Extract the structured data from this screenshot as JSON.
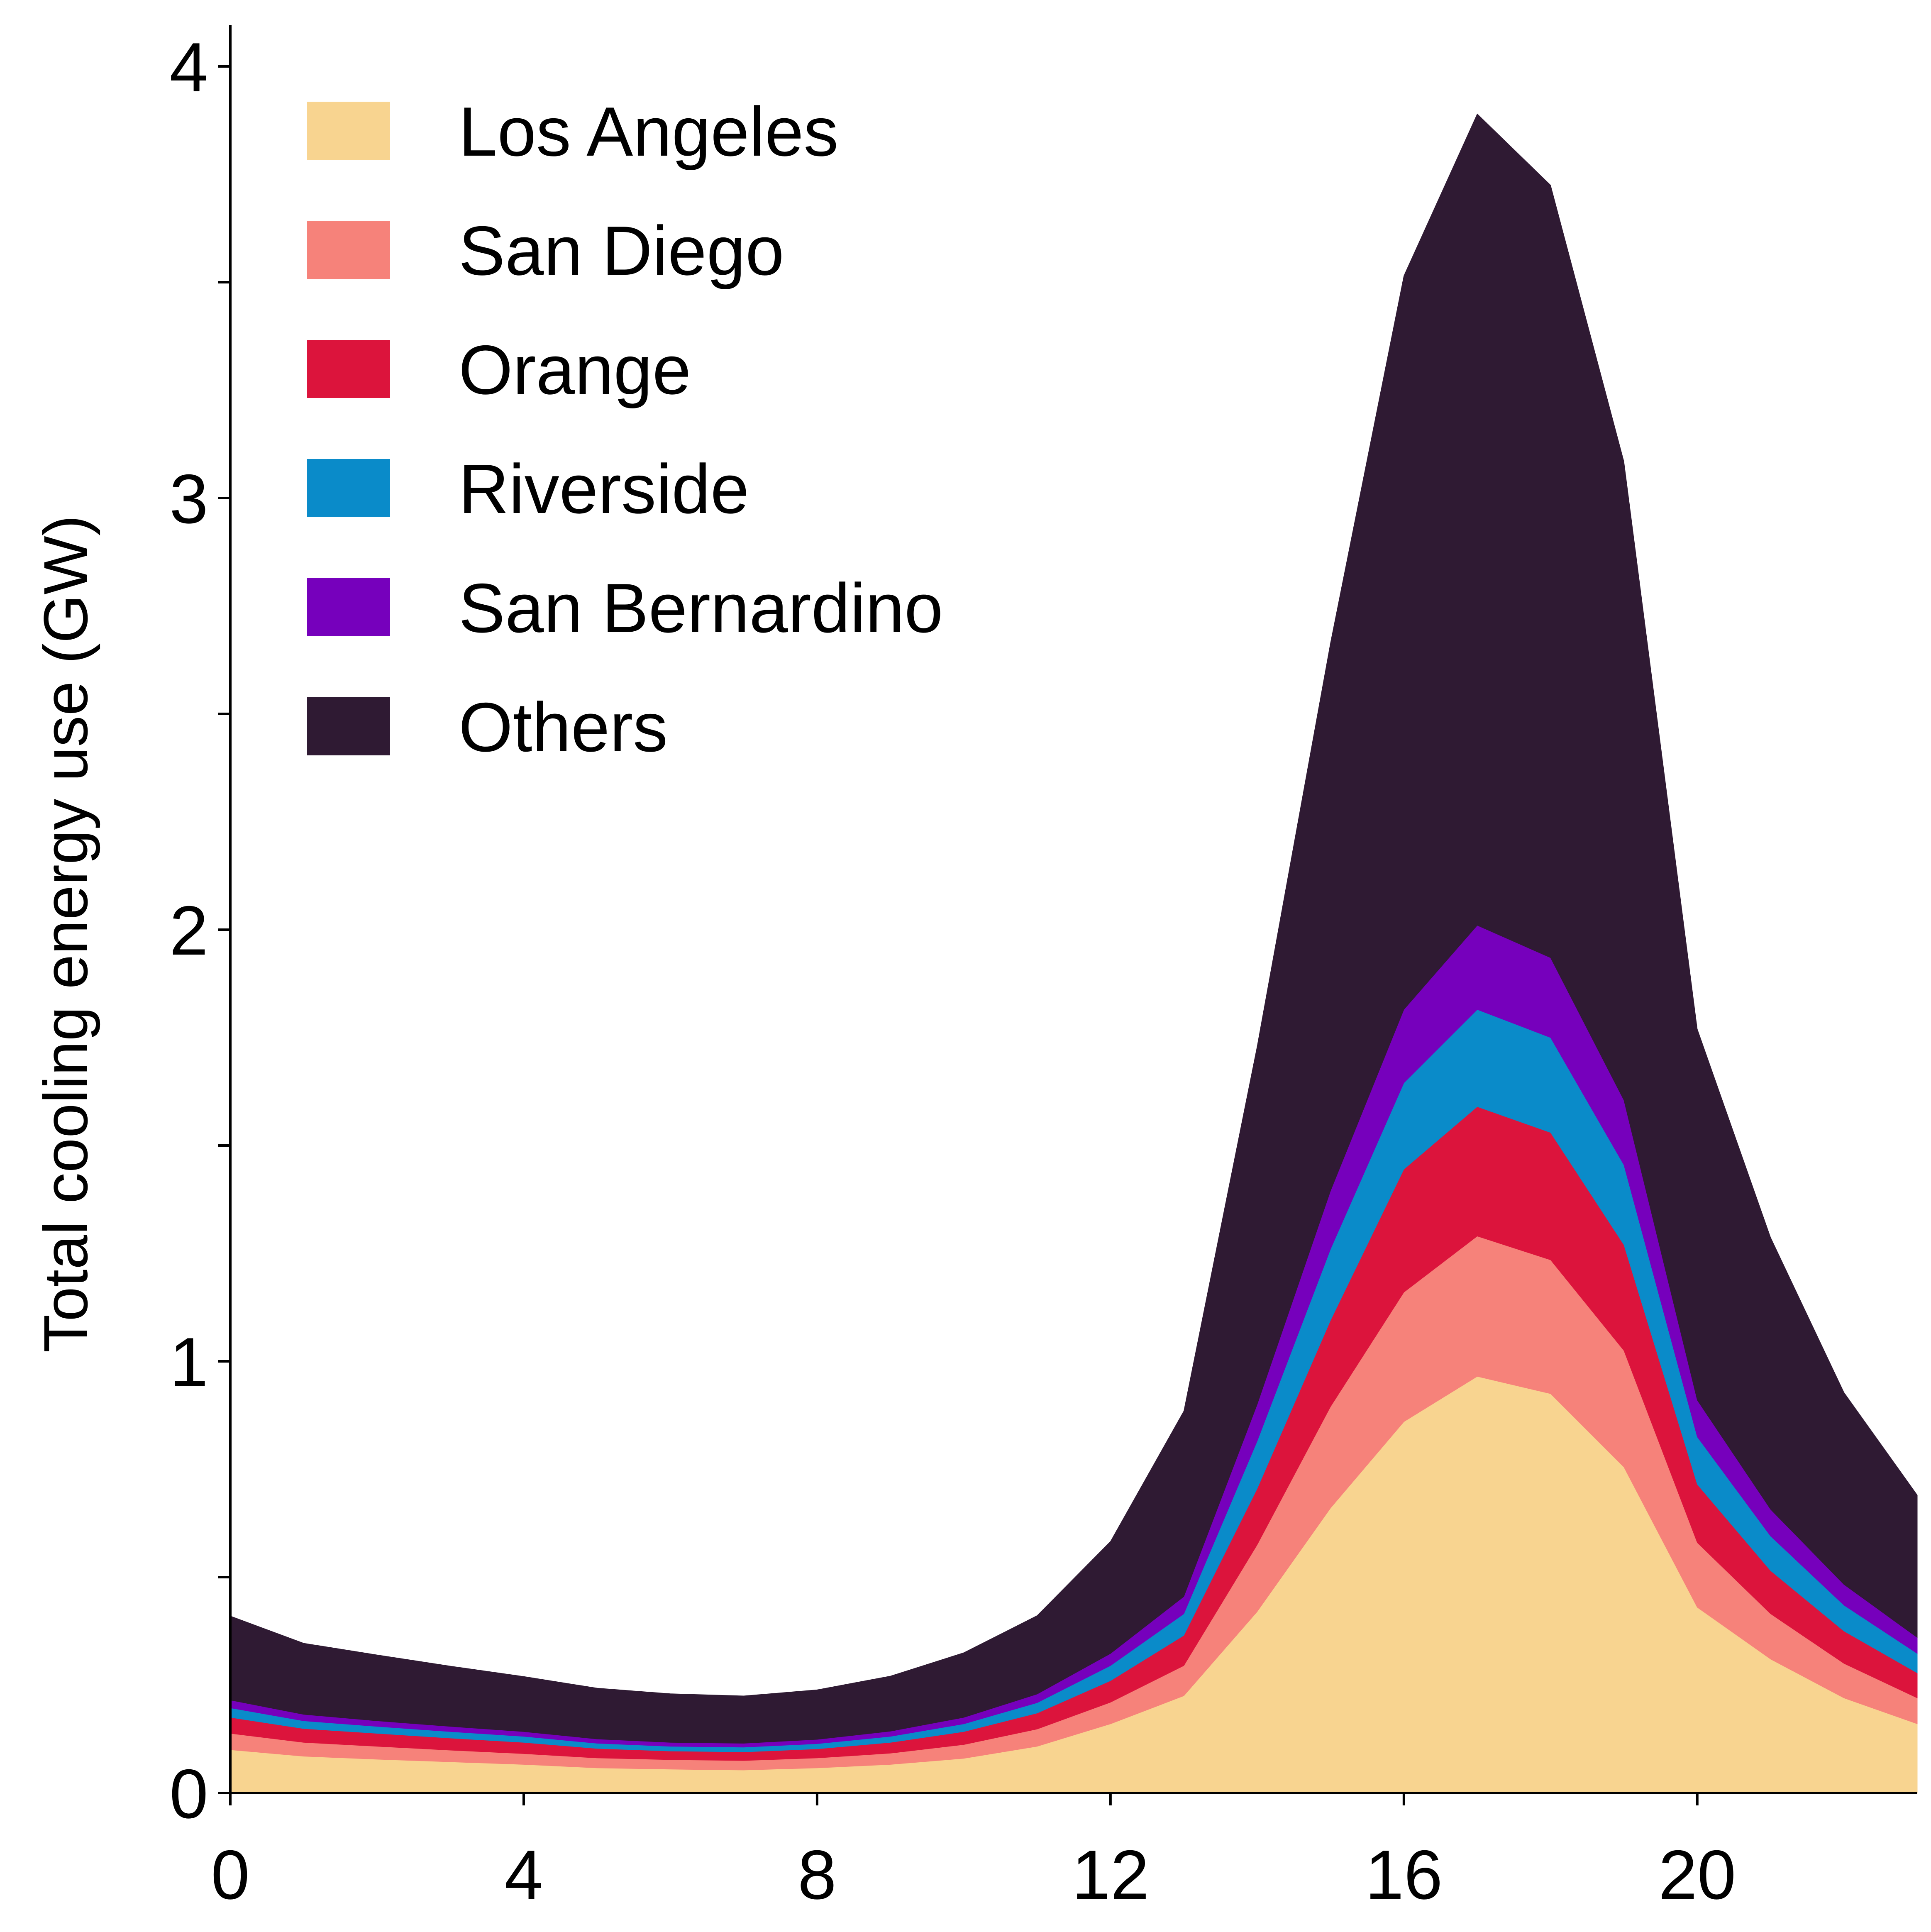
{
  "chart_data": {
    "type": "area",
    "stacked": true,
    "title": "",
    "xlabel": "",
    "ylabel": "Total cooling energy use (GW)",
    "xlim": [
      0,
      23
    ],
    "ylim": [
      0,
      4.1
    ],
    "x_ticks": [
      0,
      4,
      8,
      12,
      16,
      20
    ],
    "y_ticks": [
      0,
      1,
      2,
      3,
      4
    ],
    "y_minor_ticks": [
      0.5,
      1.5,
      2.5,
      3.5
    ],
    "grid": false,
    "legend_position": "top-left",
    "x": [
      0,
      1,
      2,
      3,
      4,
      5,
      6,
      7,
      8,
      9,
      10,
      11,
      12,
      13,
      14,
      15,
      16,
      17,
      18,
      19,
      20,
      21,
      22,
      23
    ],
    "series": [
      {
        "name": "Los Angeles",
        "color": "#F8D490",
        "values": [
          0.1,
          0.085,
          0.078,
          0.072,
          0.066,
          0.058,
          0.055,
          0.053,
          0.058,
          0.066,
          0.08,
          0.108,
          0.16,
          0.225,
          0.42,
          0.66,
          0.86,
          0.965,
          0.925,
          0.755,
          0.43,
          0.31,
          0.22,
          0.16
        ]
      },
      {
        "name": "San Diego",
        "color": "#F6827A",
        "values": [
          0.038,
          0.032,
          0.03,
          0.027,
          0.025,
          0.023,
          0.022,
          0.022,
          0.023,
          0.026,
          0.032,
          0.04,
          0.05,
          0.07,
          0.155,
          0.235,
          0.3,
          0.325,
          0.31,
          0.27,
          0.15,
          0.105,
          0.08,
          0.06
        ]
      },
      {
        "name": "Orange",
        "color": "#DC143C",
        "values": [
          0.037,
          0.032,
          0.03,
          0.028,
          0.026,
          0.022,
          0.02,
          0.02,
          0.021,
          0.025,
          0.03,
          0.037,
          0.05,
          0.07,
          0.13,
          0.2,
          0.285,
          0.3,
          0.295,
          0.245,
          0.135,
          0.1,
          0.075,
          0.058
        ]
      },
      {
        "name": "Riverside",
        "color": "#0A8BC9",
        "values": [
          0.022,
          0.018,
          0.016,
          0.015,
          0.014,
          0.012,
          0.011,
          0.011,
          0.012,
          0.014,
          0.018,
          0.024,
          0.035,
          0.05,
          0.11,
          0.165,
          0.2,
          0.225,
          0.22,
          0.185,
          0.11,
          0.08,
          0.06,
          0.045
        ]
      },
      {
        "name": "San Bernardino",
        "color": "#7600BC",
        "values": [
          0.018,
          0.015,
          0.013,
          0.012,
          0.011,
          0.01,
          0.009,
          0.009,
          0.01,
          0.012,
          0.015,
          0.02,
          0.028,
          0.04,
          0.085,
          0.135,
          0.17,
          0.195,
          0.185,
          0.15,
          0.085,
          0.062,
          0.048,
          0.037
        ]
      },
      {
        "name": "Others",
        "color": "#2F1A33",
        "values": [
          0.195,
          0.165,
          0.153,
          0.14,
          0.128,
          0.118,
          0.113,
          0.11,
          0.115,
          0.128,
          0.15,
          0.182,
          0.26,
          0.43,
          0.83,
          1.27,
          1.7,
          1.88,
          1.79,
          1.48,
          0.86,
          0.63,
          0.445,
          0.33
        ]
      }
    ]
  }
}
